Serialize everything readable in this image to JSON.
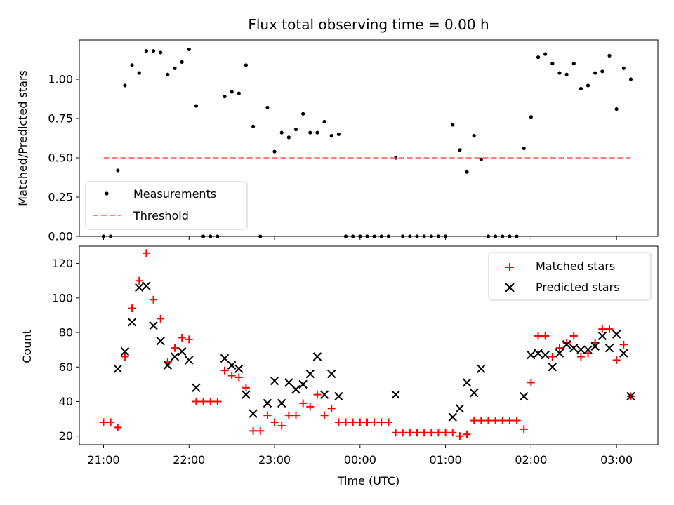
{
  "chart_data": [
    {
      "type": "scatter",
      "title": "Flux total observing time = 0.00 h",
      "xlabel": "",
      "ylabel": "Matched/Predicted stars",
      "ylim": [
        0,
        1.25
      ],
      "yticks": [
        0.0,
        0.25,
        0.5,
        0.75,
        1.0
      ],
      "yticklabels": [
        "0.00",
        "0.25",
        "0.50",
        "0.75",
        "1.00"
      ],
      "xlim": [
        "20:43",
        "03:29"
      ],
      "xticks": [
        "21:00",
        "22:00",
        "23:00",
        "00:00",
        "01:00",
        "02:00",
        "03:00"
      ],
      "legend": {
        "placement": "lower-left",
        "entries": [
          "Measurements",
          "Threshold"
        ]
      },
      "series": [
        {
          "name": "Measurements",
          "color": "#000000",
          "marker": "dot",
          "points": [
            [
              "21:00",
              0
            ],
            [
              "21:05",
              0
            ],
            [
              "21:10",
              0.42
            ],
            [
              "21:15",
              0.96
            ],
            [
              "21:20",
              1.09
            ],
            [
              "21:25",
              1.04
            ],
            [
              "21:30",
              1.18
            ],
            [
              "21:35",
              1.18
            ],
            [
              "21:40",
              1.17
            ],
            [
              "21:45",
              1.03
            ],
            [
              "21:50",
              1.07
            ],
            [
              "21:55",
              1.11
            ],
            [
              "22:00",
              1.19
            ],
            [
              "22:05",
              0.83
            ],
            [
              "22:10",
              0
            ],
            [
              "22:15",
              0
            ],
            [
              "22:20",
              0
            ],
            [
              "22:25",
              0.89
            ],
            [
              "22:30",
              0.92
            ],
            [
              "22:35",
              0.91
            ],
            [
              "22:40",
              1.09
            ],
            [
              "22:45",
              0.7
            ],
            [
              "22:50",
              0
            ],
            [
              "22:55",
              0.82
            ],
            [
              "23:00",
              0.54
            ],
            [
              "23:05",
              0.66
            ],
            [
              "23:10",
              0.63
            ],
            [
              "23:15",
              0.68
            ],
            [
              "23:20",
              0.78
            ],
            [
              "23:25",
              0.66
            ],
            [
              "23:30",
              0.66
            ],
            [
              "23:35",
              0.73
            ],
            [
              "23:40",
              0.64
            ],
            [
              "23:45",
              0.65
            ],
            [
              "23:50",
              0
            ],
            [
              "23:55",
              0
            ],
            [
              "00:00",
              0
            ],
            [
              "00:05",
              0
            ],
            [
              "00:10",
              0
            ],
            [
              "00:15",
              0
            ],
            [
              "00:20",
              0
            ],
            [
              "00:25",
              0.5
            ],
            [
              "00:30",
              0
            ],
            [
              "00:35",
              0
            ],
            [
              "00:40",
              0
            ],
            [
              "00:45",
              0
            ],
            [
              "00:50",
              0
            ],
            [
              "00:55",
              0
            ],
            [
              "01:00",
              0
            ],
            [
              "01:05",
              0.71
            ],
            [
              "01:10",
              0.55
            ],
            [
              "01:15",
              0.41
            ],
            [
              "01:20",
              0.64
            ],
            [
              "01:25",
              0.49
            ],
            [
              "01:30",
              0
            ],
            [
              "01:35",
              0
            ],
            [
              "01:40",
              0
            ],
            [
              "01:45",
              0
            ],
            [
              "01:50",
              0
            ],
            [
              "01:55",
              0.56
            ],
            [
              "02:00",
              0.76
            ],
            [
              "02:05",
              1.14
            ],
            [
              "02:10",
              1.16
            ],
            [
              "02:15",
              1.1
            ],
            [
              "02:20",
              1.04
            ],
            [
              "02:25",
              1.03
            ],
            [
              "02:30",
              1.1
            ],
            [
              "02:35",
              0.94
            ],
            [
              "02:40",
              0.96
            ],
            [
              "02:45",
              1.04
            ],
            [
              "02:50",
              1.05
            ],
            [
              "02:55",
              1.15
            ],
            [
              "03:00",
              0.81
            ],
            [
              "03:05",
              1.07
            ],
            [
              "03:10",
              1.0
            ]
          ]
        },
        {
          "name": "Threshold",
          "color": "#ff7f7f",
          "style": "dashed",
          "points": [
            [
              "21:00",
              0.5
            ],
            [
              "03:10",
              0.5
            ]
          ]
        }
      ]
    },
    {
      "type": "scatter",
      "title": "",
      "xlabel": "Time (UTC)",
      "ylabel": "Count",
      "ylim": [
        15,
        130
      ],
      "yticks": [
        20,
        40,
        60,
        80,
        100,
        120
      ],
      "yticklabels": [
        "20",
        "40",
        "60",
        "80",
        "100",
        "120"
      ],
      "xlim": [
        "20:43",
        "03:29"
      ],
      "xticks": [
        "21:00",
        "22:00",
        "23:00",
        "00:00",
        "01:00",
        "02:00",
        "03:00"
      ],
      "xticklabels": [
        "21:00",
        "22:00",
        "23:00",
        "00:00",
        "01:00",
        "02:00",
        "03:00"
      ],
      "legend": {
        "placement": "top-right",
        "entries": [
          "Matched stars",
          "Predicted stars"
        ]
      },
      "series": [
        {
          "name": "Matched stars",
          "color": "#ff0000",
          "marker": "plus",
          "points": [
            [
              "21:00",
              28
            ],
            [
              "21:05",
              28
            ],
            [
              "21:10",
              25
            ],
            [
              "21:15",
              66
            ],
            [
              "21:20",
              94
            ],
            [
              "21:25",
              110
            ],
            [
              "21:30",
              126
            ],
            [
              "21:35",
              99
            ],
            [
              "21:40",
              88
            ],
            [
              "21:45",
              63
            ],
            [
              "21:50",
              71
            ],
            [
              "21:55",
              77
            ],
            [
              "22:00",
              76
            ],
            [
              "22:05",
              40
            ],
            [
              "22:10",
              40
            ],
            [
              "22:15",
              40
            ],
            [
              "22:20",
              40
            ],
            [
              "22:25",
              58
            ],
            [
              "22:30",
              55
            ],
            [
              "22:35",
              54
            ],
            [
              "22:40",
              48
            ],
            [
              "22:45",
              23
            ],
            [
              "22:50",
              23
            ],
            [
              "22:55",
              32
            ],
            [
              "23:00",
              28
            ],
            [
              "23:05",
              26
            ],
            [
              "23:10",
              32
            ],
            [
              "23:15",
              32
            ],
            [
              "23:20",
              39
            ],
            [
              "23:25",
              37
            ],
            [
              "23:30",
              44
            ],
            [
              "23:35",
              32
            ],
            [
              "23:40",
              36
            ],
            [
              "23:45",
              28
            ],
            [
              "23:50",
              28
            ],
            [
              "23:55",
              28
            ],
            [
              "00:00",
              28
            ],
            [
              "00:05",
              28
            ],
            [
              "00:10",
              28
            ],
            [
              "00:15",
              28
            ],
            [
              "00:20",
              28
            ],
            [
              "00:25",
              22
            ],
            [
              "00:30",
              22
            ],
            [
              "00:35",
              22
            ],
            [
              "00:40",
              22
            ],
            [
              "00:45",
              22
            ],
            [
              "00:50",
              22
            ],
            [
              "00:55",
              22
            ],
            [
              "01:00",
              22
            ],
            [
              "01:05",
              22
            ],
            [
              "01:10",
              20
            ],
            [
              "01:15",
              21
            ],
            [
              "01:20",
              29
            ],
            [
              "01:25",
              29
            ],
            [
              "01:30",
              29
            ],
            [
              "01:35",
              29
            ],
            [
              "01:40",
              29
            ],
            [
              "01:45",
              29
            ],
            [
              "01:50",
              29
            ],
            [
              "01:55",
              24
            ],
            [
              "02:00",
              51
            ],
            [
              "02:05",
              78
            ],
            [
              "02:10",
              78
            ],
            [
              "02:15",
              66
            ],
            [
              "02:20",
              71
            ],
            [
              "02:25",
              74
            ],
            [
              "02:30",
              78
            ],
            [
              "02:35",
              66
            ],
            [
              "02:40",
              68
            ],
            [
              "02:45",
              74
            ],
            [
              "02:50",
              82
            ],
            [
              "02:55",
              82
            ],
            [
              "03:00",
              64
            ],
            [
              "03:05",
              73
            ],
            [
              "03:10",
              43
            ]
          ]
        },
        {
          "name": "Predicted stars",
          "color": "#000000",
          "marker": "x",
          "points": [
            [
              "21:10",
              59
            ],
            [
              "21:15",
              69
            ],
            [
              "21:20",
              86
            ],
            [
              "21:25",
              106
            ],
            [
              "21:30",
              107
            ],
            [
              "21:35",
              84
            ],
            [
              "21:40",
              75
            ],
            [
              "21:45",
              61
            ],
            [
              "21:50",
              66
            ],
            [
              "21:55",
              69
            ],
            [
              "22:00",
              64
            ],
            [
              "22:05",
              48
            ],
            [
              "22:25",
              65
            ],
            [
              "22:30",
              61
            ],
            [
              "22:35",
              59
            ],
            [
              "22:40",
              44
            ],
            [
              "22:45",
              33
            ],
            [
              "22:55",
              39
            ],
            [
              "23:00",
              52
            ],
            [
              "23:05",
              39
            ],
            [
              "23:10",
              51
            ],
            [
              "23:15",
              47
            ],
            [
              "23:20",
              50
            ],
            [
              "23:25",
              56
            ],
            [
              "23:30",
              66
            ],
            [
              "23:35",
              44
            ],
            [
              "23:40",
              56
            ],
            [
              "23:45",
              43
            ],
            [
              "00:25",
              44
            ],
            [
              "01:05",
              31
            ],
            [
              "01:10",
              36
            ],
            [
              "01:15",
              51
            ],
            [
              "01:20",
              45
            ],
            [
              "01:25",
              59
            ],
            [
              "01:55",
              43
            ],
            [
              "02:00",
              67
            ],
            [
              "02:05",
              68
            ],
            [
              "02:10",
              67
            ],
            [
              "02:15",
              60
            ],
            [
              "02:20",
              68
            ],
            [
              "02:25",
              73
            ],
            [
              "02:30",
              71
            ],
            [
              "02:35",
              70
            ],
            [
              "02:40",
              70
            ],
            [
              "02:45",
              72
            ],
            [
              "02:50",
              78
            ],
            [
              "02:55",
              71
            ],
            [
              "03:00",
              79
            ],
            [
              "03:05",
              68
            ],
            [
              "03:10",
              43
            ]
          ]
        }
      ]
    }
  ]
}
